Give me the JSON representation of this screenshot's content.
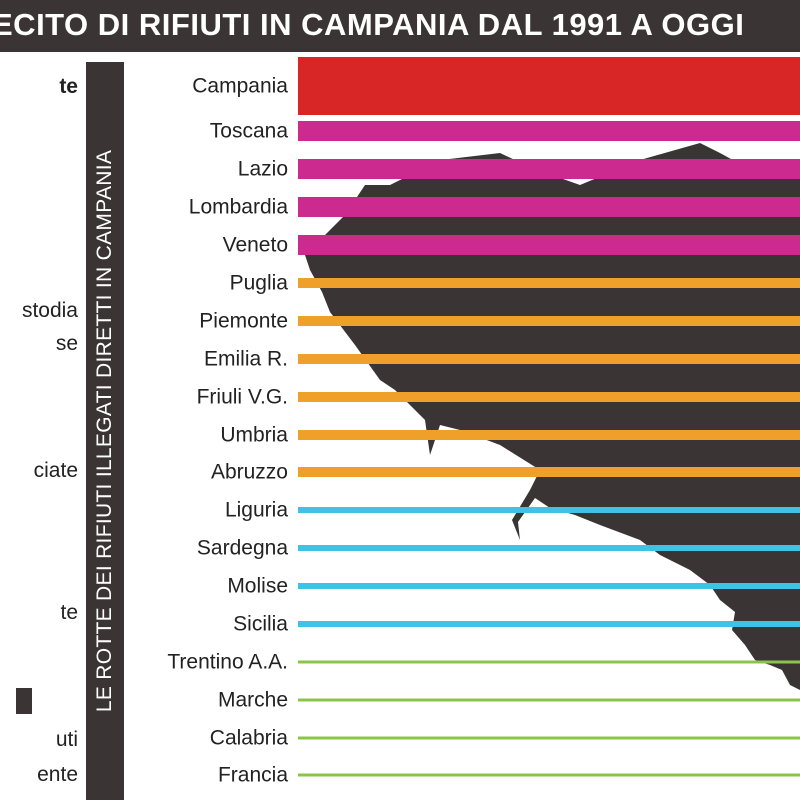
{
  "header": {
    "title": "ECITO DI RIFIUTI IN CAMPANIA DAL 1991 A OGGI"
  },
  "vertical_label": "LE ROTTE DEI RIFIUTI ILLEGATI DIRETTI IN CAMPANIA",
  "left_legend": [
    {
      "text": "te",
      "bold": true
    },
    {
      "text": "stodia",
      "bold": false
    },
    {
      "text": "se",
      "bold": false
    },
    {
      "text": "ciate",
      "bold": false
    },
    {
      "text": "te",
      "bold": false
    },
    {
      "text": "uti",
      "bold": false
    },
    {
      "text": "ente",
      "bold": false
    }
  ],
  "colors": {
    "header_bg": "#3b3434",
    "map_fill": "#3b3434",
    "red": "#d82626",
    "magenta": "#cc2a8e",
    "orange": "#eea02a",
    "cyan": "#3ec2e6",
    "green": "#8cc44a"
  },
  "chart_data": {
    "type": "bar",
    "categories": [
      "Campania",
      "Toscana",
      "Lazio",
      "Lombardia",
      "Veneto",
      "Puglia",
      "Piemonte",
      "Emilia R.",
      "Friuli V.G.",
      "Umbria",
      "Abruzzo",
      "Liguria",
      "Sardegna",
      "Molise",
      "Sicilia",
      "Trentino A.A.",
      "Marche",
      "Calabria",
      "Francia"
    ],
    "tiers": [
      "red",
      "magenta",
      "magenta",
      "magenta",
      "magenta",
      "orange",
      "orange",
      "orange",
      "orange",
      "orange",
      "orange",
      "cyan",
      "cyan",
      "cyan",
      "cyan",
      "green",
      "green",
      "green",
      "green"
    ]
  }
}
